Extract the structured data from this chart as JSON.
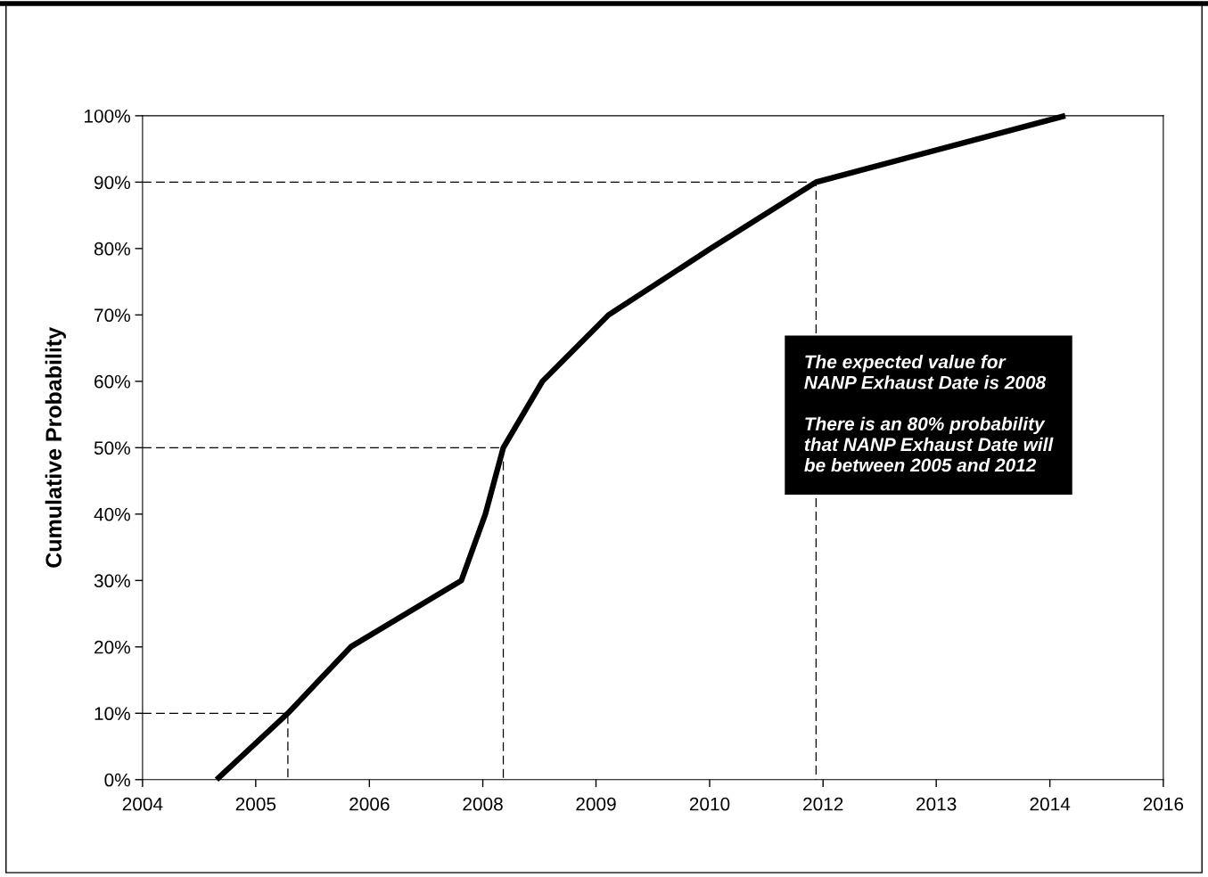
{
  "chart_data": {
    "type": "line",
    "ylabel": "Cumulative Probability",
    "xlim": [
      "2004-01-01",
      "2016-01-01"
    ],
    "xticks": [
      {
        "value": "2004-01-01",
        "label": "2004"
      },
      {
        "value": "2005-05-01",
        "label": "2005"
      },
      {
        "value": "2006-09-01",
        "label": "2006"
      },
      {
        "value": "2008-01-01",
        "label": "2008"
      },
      {
        "value": "2009-05-01",
        "label": "2009"
      },
      {
        "value": "2010-09-01",
        "label": "2010"
      },
      {
        "value": "2012-01-01",
        "label": "2012"
      },
      {
        "value": "2013-05-01",
        "label": "2013"
      },
      {
        "value": "2014-09-01",
        "label": "2014"
      },
      {
        "value": "2016-01-01",
        "label": "2016"
      }
    ],
    "ylim": [
      0,
      100
    ],
    "yticks": [
      {
        "value": 0,
        "label": "0%"
      },
      {
        "value": 10,
        "label": "10%"
      },
      {
        "value": 20,
        "label": "20%"
      },
      {
        "value": 30,
        "label": "30%"
      },
      {
        "value": 40,
        "label": "40%"
      },
      {
        "value": 50,
        "label": "50%"
      },
      {
        "value": 60,
        "label": "60%"
      },
      {
        "value": 70,
        "label": "70%"
      },
      {
        "value": 80,
        "label": "80%"
      },
      {
        "value": 90,
        "label": "90%"
      },
      {
        "value": 100,
        "label": "100%"
      }
    ],
    "grid": false,
    "marker": "none",
    "series": [
      {
        "color": "#000000",
        "line_style": "solid",
        "x": [
          "2004-11-14",
          "2005-09-16",
          "2006-06-13",
          "2007-10-01",
          "2008-01-12",
          "2008-03-29",
          "2008-09-13",
          "2009-06-24",
          "2010-09-05",
          "2011-12-02",
          "2014-11-06"
        ],
        "values": [
          0,
          10,
          20,
          30,
          40,
          50,
          60,
          70,
          80,
          90,
          100
        ]
      },
      {
        "color": "#000000",
        "line_style": "dashed",
        "x": [
          "2004-01-01",
          "2005-09-16",
          "2005-09-16"
        ],
        "values": [
          10,
          10,
          0
        ]
      },
      {
        "color": "#000000",
        "line_style": "dashed",
        "x": [
          "2004-01-01",
          "2008-03-29",
          "2008-03-29"
        ],
        "values": [
          50,
          50,
          0
        ]
      },
      {
        "color": "#000000",
        "line_style": "dashed",
        "x": [
          "2004-01-01",
          "2011-12-02",
          "2011-12-02"
        ],
        "values": [
          90,
          90,
          0
        ]
      }
    ],
    "annotations": [
      "The expected value for\nNANP Exhaust Date is 2008\n\nThere is an 80% probability\nthat NANP Exhaust Date will\nbe between 2005 and 2012"
    ]
  }
}
